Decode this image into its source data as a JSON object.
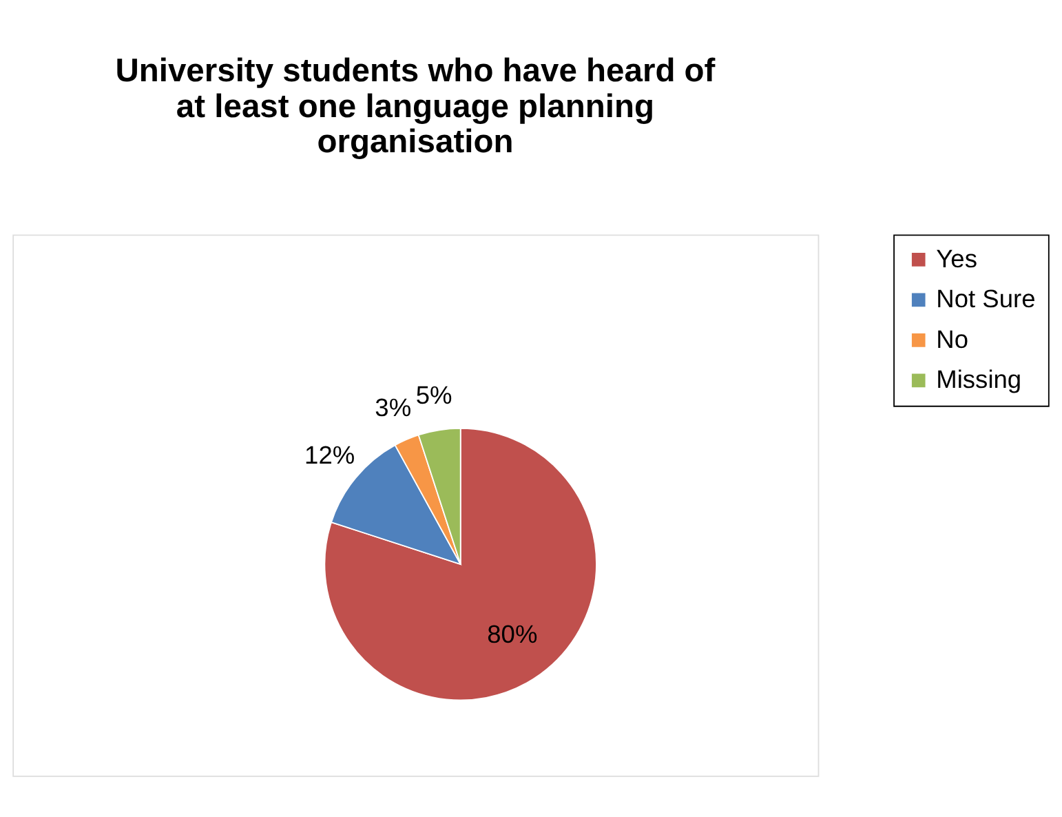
{
  "chart_data": {
    "type": "pie",
    "title": "University students who have heard of at least one language planning organisation",
    "categories": [
      "Yes",
      "Not Sure",
      "No",
      "Missing"
    ],
    "values": [
      80,
      12,
      3,
      5
    ],
    "colors": [
      "#c0504d",
      "#4f81bd",
      "#f79646",
      "#9bbb59"
    ],
    "value_labels": [
      "80%",
      "12%",
      "3%",
      "5%"
    ],
    "legend": "right"
  }
}
